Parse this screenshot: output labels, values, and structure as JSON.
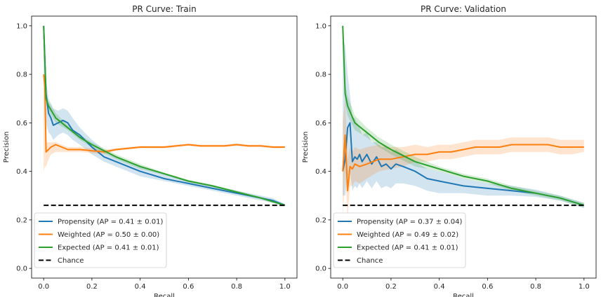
{
  "chart_data": [
    {
      "type": "line",
      "title": "PR Curve: Train",
      "xlabel": "Recall",
      "ylabel": "Precision",
      "xlim": [
        -0.05,
        1.05
      ],
      "ylim": [
        -0.04,
        1.04
      ],
      "xticks": [
        0.0,
        0.2,
        0.4,
        0.6,
        0.8,
        1.0
      ],
      "yticks": [
        0.0,
        0.2,
        0.4,
        0.6,
        0.8,
        1.0
      ],
      "xtick_labels": [
        "0.0",
        "0.2",
        "0.4",
        "0.6",
        "0.8",
        "1.0"
      ],
      "ytick_labels": [
        "0.0",
        "0.2",
        "0.4",
        "0.6",
        "0.8",
        "1.0"
      ],
      "legend_position": "lower-left",
      "series": [
        {
          "name": "Propensity (AP = 0.41 ± 0.01)",
          "color": "#1f77b4",
          "x": [
            0.0,
            0.01,
            0.02,
            0.03,
            0.04,
            0.06,
            0.08,
            0.1,
            0.12,
            0.15,
            0.2,
            0.25,
            0.3,
            0.4,
            0.5,
            0.6,
            0.7,
            0.8,
            0.9,
            0.95,
            1.0
          ],
          "y": [
            1.0,
            0.72,
            0.64,
            0.62,
            0.59,
            0.6,
            0.61,
            0.6,
            0.57,
            0.55,
            0.5,
            0.46,
            0.44,
            0.4,
            0.37,
            0.35,
            0.33,
            0.31,
            0.29,
            0.28,
            0.26
          ],
          "band_upper": [
            1.0,
            0.78,
            0.7,
            0.68,
            0.66,
            0.65,
            0.66,
            0.65,
            0.62,
            0.58,
            0.53,
            0.49,
            0.46,
            0.42,
            0.39,
            0.36,
            0.34,
            0.32,
            0.3,
            0.29,
            0.265
          ],
          "band_lower": [
            0.8,
            0.6,
            0.56,
            0.55,
            0.53,
            0.55,
            0.56,
            0.55,
            0.53,
            0.51,
            0.47,
            0.44,
            0.42,
            0.38,
            0.36,
            0.34,
            0.32,
            0.3,
            0.28,
            0.27,
            0.255
          ]
        },
        {
          "name": "Weighted (AP = 0.50 ± 0.00)",
          "color": "#ff7f0e",
          "x": [
            0.0,
            0.005,
            0.01,
            0.02,
            0.03,
            0.05,
            0.1,
            0.15,
            0.2,
            0.25,
            0.3,
            0.35,
            0.4,
            0.45,
            0.5,
            0.55,
            0.6,
            0.65,
            0.7,
            0.75,
            0.8,
            0.85,
            0.9,
            0.95,
            1.0
          ],
          "y": [
            0.8,
            0.75,
            0.48,
            0.49,
            0.5,
            0.51,
            0.49,
            0.49,
            0.485,
            0.48,
            0.49,
            0.495,
            0.5,
            0.5,
            0.5,
            0.505,
            0.51,
            0.505,
            0.505,
            0.505,
            0.51,
            0.505,
            0.505,
            0.5,
            0.5
          ],
          "band_upper": [
            0.8,
            0.78,
            0.52,
            0.52,
            0.52,
            0.52,
            0.5,
            0.5,
            0.495,
            0.49,
            0.495,
            0.5,
            0.505,
            0.505,
            0.505,
            0.51,
            0.515,
            0.51,
            0.51,
            0.51,
            0.515,
            0.51,
            0.51,
            0.505,
            0.505
          ],
          "band_lower": [
            0.4,
            0.42,
            0.42,
            0.45,
            0.47,
            0.48,
            0.48,
            0.48,
            0.475,
            0.47,
            0.485,
            0.49,
            0.495,
            0.495,
            0.495,
            0.5,
            0.505,
            0.5,
            0.5,
            0.5,
            0.505,
            0.5,
            0.5,
            0.495,
            0.495
          ]
        },
        {
          "name": "Expected (AP = 0.41 ± 0.01)",
          "color": "#2ca02c",
          "x": [
            0.0,
            0.01,
            0.02,
            0.05,
            0.1,
            0.15,
            0.2,
            0.3,
            0.4,
            0.5,
            0.6,
            0.7,
            0.8,
            0.9,
            1.0
          ],
          "y": [
            1.0,
            0.7,
            0.67,
            0.62,
            0.58,
            0.54,
            0.51,
            0.46,
            0.42,
            0.39,
            0.36,
            0.34,
            0.315,
            0.29,
            0.26
          ],
          "band_upper": [
            1.0,
            0.72,
            0.69,
            0.64,
            0.59,
            0.55,
            0.52,
            0.47,
            0.43,
            0.395,
            0.365,
            0.345,
            0.32,
            0.295,
            0.265
          ],
          "band_lower": [
            1.0,
            0.68,
            0.65,
            0.6,
            0.57,
            0.53,
            0.5,
            0.45,
            0.41,
            0.385,
            0.355,
            0.335,
            0.31,
            0.285,
            0.255
          ]
        },
        {
          "name": "Chance",
          "color": "#000000",
          "dashed": true,
          "x": [
            0.0,
            1.0
          ],
          "y": [
            0.26,
            0.26
          ]
        }
      ]
    },
    {
      "type": "line",
      "title": "PR Curve: Validation",
      "xlabel": "Recall",
      "ylabel": "Precision",
      "xlim": [
        -0.05,
        1.05
      ],
      "ylim": [
        -0.04,
        1.04
      ],
      "xticks": [
        0.0,
        0.2,
        0.4,
        0.6,
        0.8,
        1.0
      ],
      "yticks": [
        0.0,
        0.2,
        0.4,
        0.6,
        0.8,
        1.0
      ],
      "xtick_labels": [
        "0.0",
        "0.2",
        "0.4",
        "0.6",
        "0.8",
        "1.0"
      ],
      "ytick_labels": [
        "0.0",
        "0.2",
        "0.4",
        "0.6",
        "0.8",
        "1.0"
      ],
      "legend_position": "lower-left",
      "series": [
        {
          "name": "Propensity (AP = 0.37 ± 0.04)",
          "color": "#1f77b4",
          "x": [
            0.0,
            0.01,
            0.02,
            0.03,
            0.04,
            0.05,
            0.06,
            0.07,
            0.08,
            0.1,
            0.12,
            0.14,
            0.16,
            0.18,
            0.2,
            0.22,
            0.25,
            0.3,
            0.35,
            0.4,
            0.5,
            0.6,
            0.7,
            0.8,
            0.9,
            1.0
          ],
          "y": [
            0.4,
            0.45,
            0.58,
            0.6,
            0.44,
            0.46,
            0.45,
            0.47,
            0.44,
            0.47,
            0.43,
            0.46,
            0.42,
            0.43,
            0.41,
            0.43,
            0.42,
            0.4,
            0.37,
            0.36,
            0.34,
            0.33,
            0.32,
            0.31,
            0.29,
            0.26
          ],
          "band_upper": [
            0.95,
            0.92,
            0.8,
            0.72,
            0.62,
            0.62,
            0.6,
            0.58,
            0.55,
            0.56,
            0.52,
            0.52,
            0.5,
            0.5,
            0.48,
            0.49,
            0.47,
            0.44,
            0.41,
            0.4,
            0.37,
            0.35,
            0.34,
            0.325,
            0.3,
            0.27
          ],
          "band_lower": [
            0.3,
            0.3,
            0.38,
            0.4,
            0.32,
            0.34,
            0.33,
            0.35,
            0.33,
            0.36,
            0.33,
            0.36,
            0.33,
            0.34,
            0.33,
            0.35,
            0.35,
            0.34,
            0.32,
            0.31,
            0.31,
            0.3,
            0.3,
            0.295,
            0.28,
            0.25
          ]
        },
        {
          "name": "Weighted (AP = 0.49 ± 0.02)",
          "color": "#ff7f0e",
          "x": [
            0.0,
            0.01,
            0.02,
            0.03,
            0.04,
            0.05,
            0.07,
            0.1,
            0.15,
            0.2,
            0.25,
            0.3,
            0.35,
            0.4,
            0.45,
            0.5,
            0.55,
            0.6,
            0.65,
            0.7,
            0.75,
            0.8,
            0.85,
            0.9,
            0.95,
            1.0
          ],
          "y": [
            0.4,
            0.55,
            0.32,
            0.42,
            0.41,
            0.43,
            0.42,
            0.43,
            0.45,
            0.45,
            0.46,
            0.47,
            0.47,
            0.48,
            0.48,
            0.49,
            0.5,
            0.5,
            0.5,
            0.51,
            0.51,
            0.51,
            0.51,
            0.5,
            0.5,
            0.5
          ],
          "band_upper": [
            0.6,
            0.7,
            0.45,
            0.5,
            0.48,
            0.5,
            0.49,
            0.5,
            0.51,
            0.5,
            0.5,
            0.51,
            0.5,
            0.51,
            0.51,
            0.52,
            0.53,
            0.53,
            0.53,
            0.54,
            0.54,
            0.54,
            0.54,
            0.53,
            0.53,
            0.53
          ],
          "band_lower": [
            0.2,
            0.4,
            0.2,
            0.34,
            0.34,
            0.36,
            0.35,
            0.37,
            0.4,
            0.41,
            0.42,
            0.44,
            0.44,
            0.45,
            0.45,
            0.46,
            0.47,
            0.47,
            0.47,
            0.48,
            0.48,
            0.48,
            0.48,
            0.47,
            0.47,
            0.48
          ]
        },
        {
          "name": "Expected (AP = 0.41 ± 0.01)",
          "color": "#2ca02c",
          "x": [
            0.0,
            0.01,
            0.02,
            0.05,
            0.1,
            0.15,
            0.2,
            0.3,
            0.4,
            0.5,
            0.6,
            0.7,
            0.8,
            0.9,
            1.0
          ],
          "y": [
            1.0,
            0.72,
            0.67,
            0.6,
            0.56,
            0.52,
            0.49,
            0.44,
            0.41,
            0.38,
            0.36,
            0.33,
            0.31,
            0.29,
            0.26
          ],
          "band_upper": [
            1.0,
            0.76,
            0.71,
            0.63,
            0.58,
            0.54,
            0.51,
            0.46,
            0.42,
            0.39,
            0.37,
            0.34,
            0.32,
            0.3,
            0.27
          ],
          "band_lower": [
            0.95,
            0.68,
            0.63,
            0.57,
            0.54,
            0.5,
            0.47,
            0.42,
            0.4,
            0.37,
            0.35,
            0.32,
            0.3,
            0.28,
            0.25
          ]
        },
        {
          "name": "Chance",
          "color": "#000000",
          "dashed": true,
          "x": [
            0.0,
            1.0
          ],
          "y": [
            0.26,
            0.26
          ]
        }
      ]
    }
  ]
}
